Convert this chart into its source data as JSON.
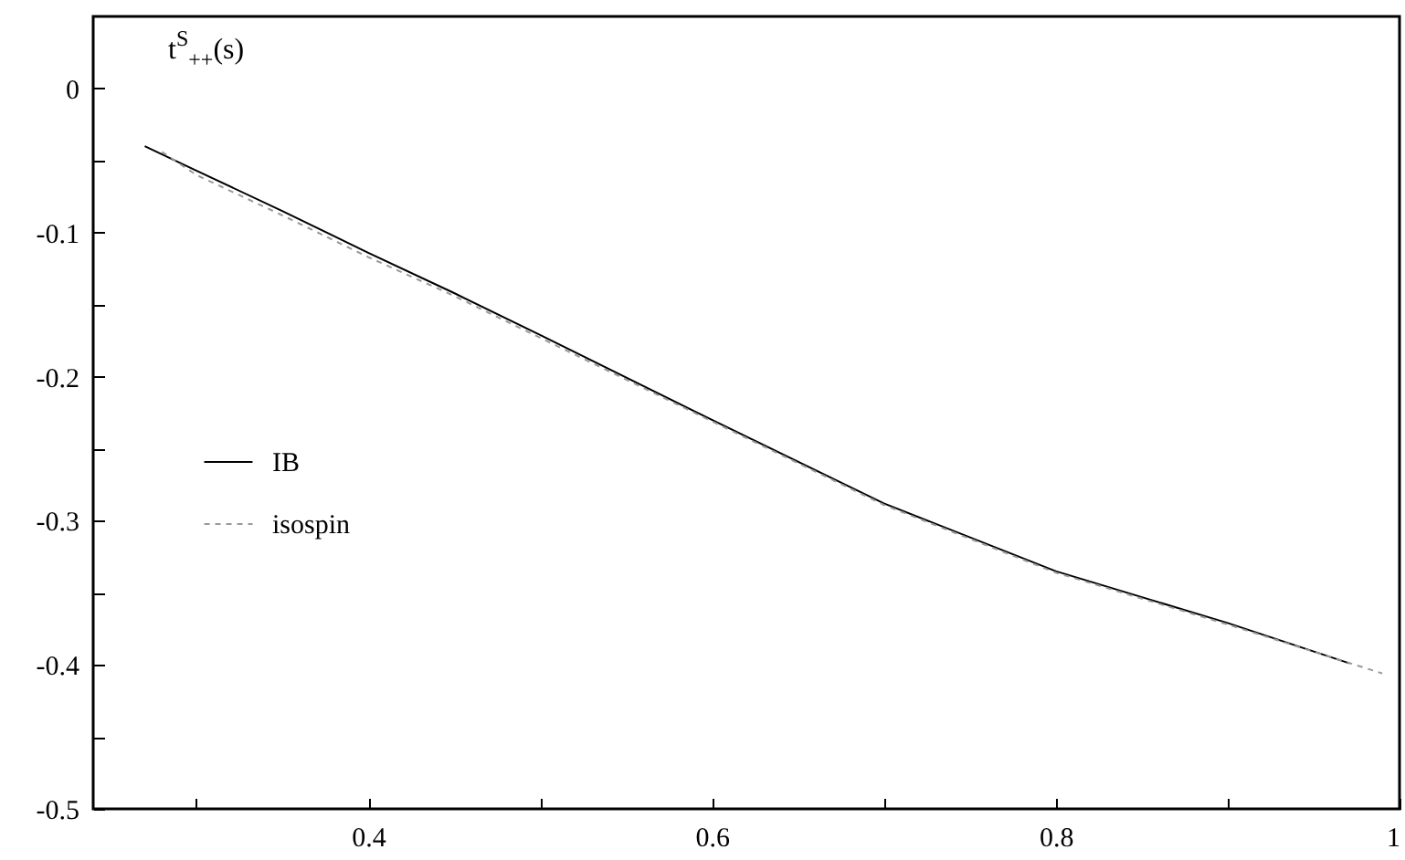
{
  "chart_data": {
    "type": "line",
    "ylabel": "t$^{S}$$_{++}$(s)",
    "xlim": [
      0.24,
      1
    ],
    "ylim": [
      -0.5,
      0.05
    ],
    "xticks": [
      {
        "value": 0.3,
        "label": null
      },
      0.4,
      {
        "value": 0.5,
        "label": null
      },
      0.6,
      {
        "value": 0.7,
        "label": null
      },
      0.8,
      {
        "value": 0.9,
        "label": null
      },
      1
    ],
    "yticks": [
      -0.5,
      {
        "value": -0.45,
        "label": null
      },
      -0.4,
      {
        "value": -0.35,
        "label": null
      },
      -0.3,
      {
        "value": -0.25,
        "label": null
      },
      -0.2,
      {
        "value": -0.15,
        "label": null
      },
      -0.1,
      {
        "value": -0.05,
        "label": null
      },
      0
    ],
    "legend": "left",
    "grid": false,
    "series": [
      {
        "name": "IB",
        "color": "#000000",
        "line_style": "solid",
        "x": [
          0.27,
          0.3,
          0.35,
          0.4,
          0.45,
          0.5,
          0.6,
          0.7,
          0.8,
          0.9,
          0.971
        ],
        "values": [
          -0.04,
          -0.057,
          -0.085,
          -0.114,
          -0.142,
          -0.171,
          -0.23,
          -0.288,
          -0.335,
          -0.371,
          -0.399
        ]
      },
      {
        "name": "isospin",
        "color": "#999999",
        "line_style": "dashed",
        "x": [
          0.28,
          0.3,
          0.35,
          0.4,
          0.45,
          0.5,
          0.6,
          0.7,
          0.8,
          0.9,
          0.99
        ],
        "values": [
          -0.044,
          -0.06,
          -0.088,
          -0.117,
          -0.144,
          -0.173,
          -0.231,
          -0.289,
          -0.336,
          -0.372,
          -0.406
        ]
      }
    ]
  }
}
